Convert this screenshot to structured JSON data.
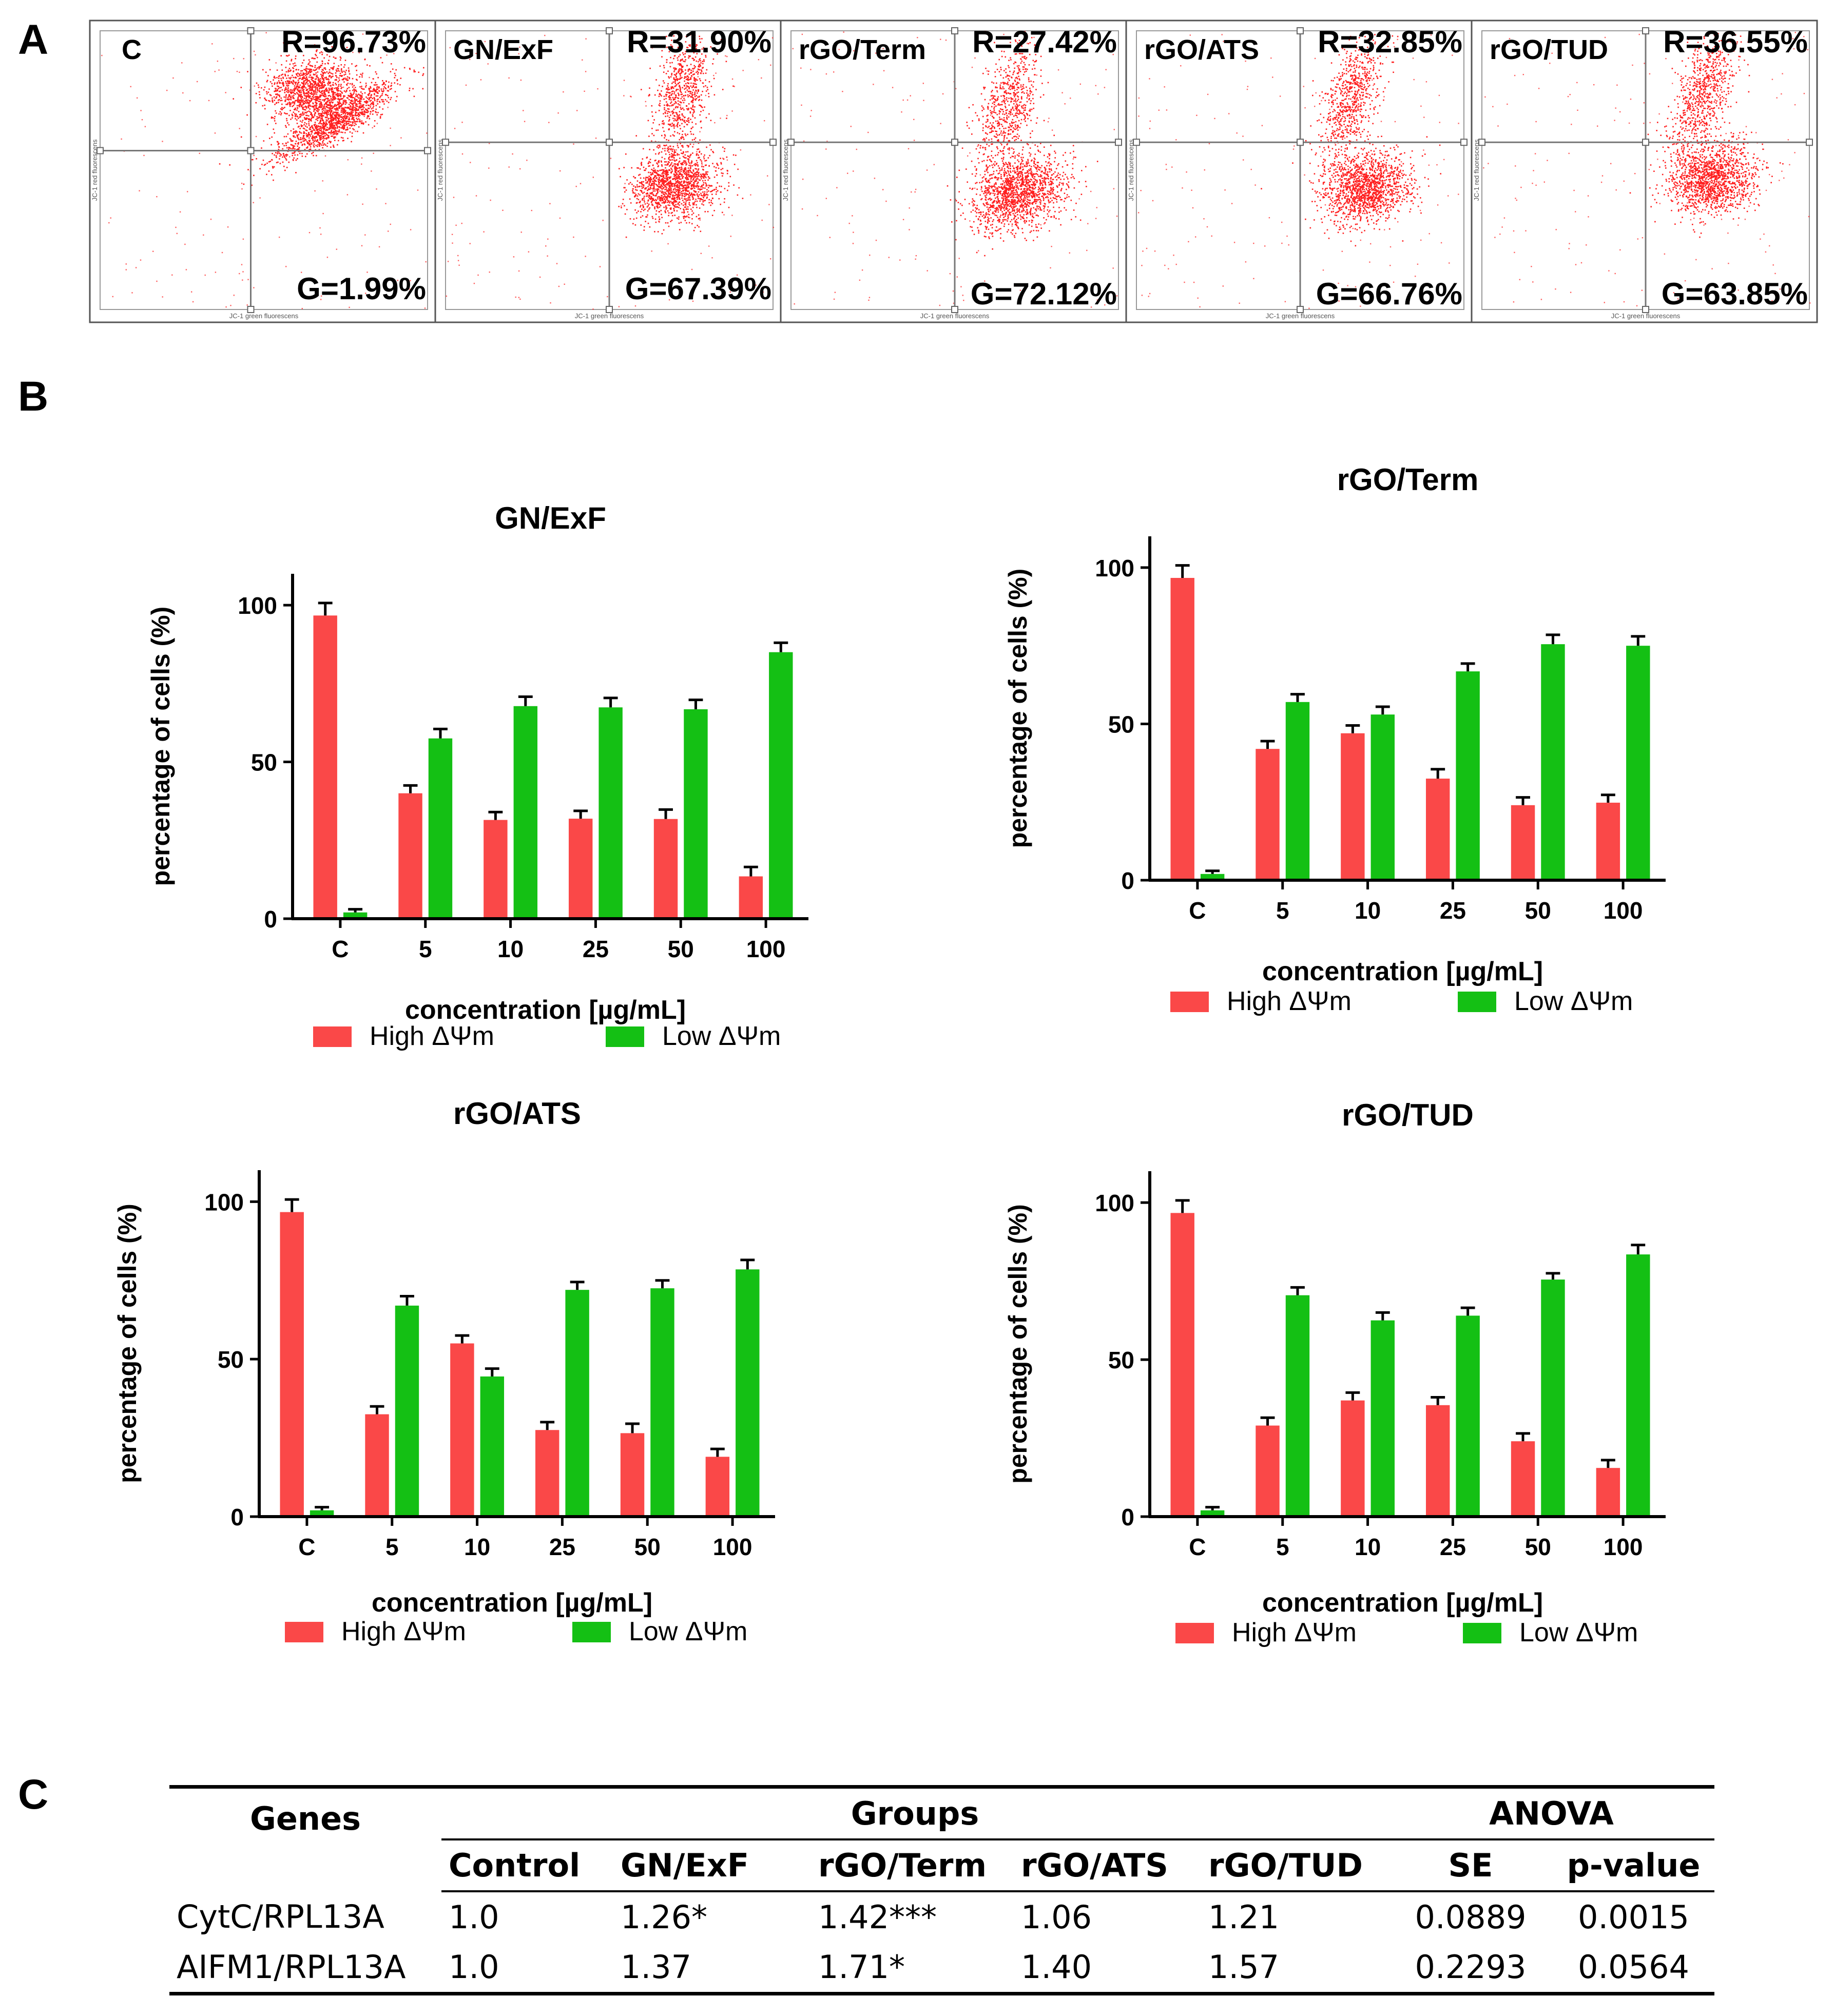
{
  "panel_labels": {
    "a": "A",
    "b": "B",
    "c": "C"
  },
  "colors": {
    "high": "#fa4848",
    "low": "#14c014",
    "dots": "#ff1f1f"
  },
  "flow": [
    {
      "label": "C",
      "R": "R=96.73%",
      "G": "G=1.99%"
    },
    {
      "label": "GN/ExF",
      "R": "R=31.90%",
      "G": "G=67.39%"
    },
    {
      "label": "rGO/Term",
      "R": "R=27.42%",
      "G": "G=72.12%"
    },
    {
      "label": "rGO/ATS",
      "R": "R=32.85%",
      "G": "G=66.76%"
    },
    {
      "label": "rGO/TUD",
      "R": "R=36.55%",
      "G": "G=63.85%"
    }
  ],
  "flow_axis": {
    "x": "JC-1 green fluorescens",
    "y": "JC-1 red fluorescens"
  },
  "chart_data": [
    {
      "type": "bar",
      "title": "GN/ExF",
      "categories": [
        "C",
        "5",
        "10",
        "25",
        "50",
        "100"
      ],
      "series": [
        {
          "name": "High ΔΨm",
          "values": [
            96.7,
            40,
            31.5,
            31.9,
            31.8,
            13.5
          ],
          "err": [
            4,
            2.5,
            2.5,
            2.5,
            3,
            3
          ]
        },
        {
          "name": "Low ΔΨm",
          "values": [
            2,
            57.5,
            67.8,
            67.4,
            66.8,
            85
          ],
          "err": [
            1,
            3,
            3,
            3,
            3,
            3
          ]
        }
      ],
      "xlabel": "concentration [µg/mL]",
      "ylabel": "percentage of cells (%)",
      "ylim": [
        0,
        110
      ],
      "yticks": [
        0,
        50,
        100
      ],
      "legend": "bottom"
    },
    {
      "type": "bar",
      "title": "rGO/Term",
      "categories": [
        "C",
        "5",
        "10",
        "25",
        "50",
        "100"
      ],
      "series": [
        {
          "name": "High ΔΨm",
          "values": [
            96.7,
            42,
            47,
            32.5,
            24,
            24.8
          ],
          "err": [
            4,
            2.5,
            2.5,
            3,
            2.5,
            2.5
          ]
        },
        {
          "name": "Low ΔΨm",
          "values": [
            2,
            57,
            53,
            66.8,
            75.5,
            75
          ],
          "err": [
            1,
            2.5,
            2.5,
            2.5,
            3,
            3
          ]
        }
      ],
      "xlabel": "concentration [µg/mL]",
      "ylabel": "percentage of cells (%)",
      "ylim": [
        0,
        110
      ],
      "yticks": [
        0,
        50,
        100
      ],
      "legend": "bottom"
    },
    {
      "type": "bar",
      "title": "rGO/ATS",
      "categories": [
        "C",
        "5",
        "10",
        "25",
        "50",
        "100"
      ],
      "series": [
        {
          "name": "High ΔΨm",
          "values": [
            96.7,
            32.5,
            55,
            27.5,
            26.5,
            19
          ],
          "err": [
            4,
            2.5,
            2.5,
            2.5,
            3,
            2.5
          ]
        },
        {
          "name": "Low ΔΨm",
          "values": [
            2,
            67,
            44.5,
            72,
            72.5,
            78.5
          ],
          "err": [
            1,
            3,
            2.5,
            2.5,
            2.5,
            3
          ]
        }
      ],
      "xlabel": "concentration [µg/mL]",
      "ylabel": "percentage of cells (%)",
      "ylim": [
        0,
        110
      ],
      "yticks": [
        0,
        50,
        100
      ],
      "legend": "bottom"
    },
    {
      "type": "bar",
      "title": "rGO/TUD",
      "categories": [
        "C",
        "5",
        "10",
        "25",
        "50",
        "100"
      ],
      "series": [
        {
          "name": "High ΔΨm",
          "values": [
            96.7,
            29,
            37,
            35.5,
            24,
            15.5
          ],
          "err": [
            4,
            2.5,
            2.5,
            2.5,
            2.5,
            2.5
          ]
        },
        {
          "name": "Low ΔΨm",
          "values": [
            2,
            70.5,
            62.5,
            64,
            75.5,
            83.5
          ],
          "err": [
            1,
            2.5,
            2.5,
            2.5,
            2,
            3
          ]
        }
      ],
      "xlabel": "concentration [µg/mL]",
      "ylabel": "percentage of cells (%)",
      "ylim": [
        0,
        110
      ],
      "yticks": [
        0,
        50,
        100
      ],
      "legend": "bottom"
    }
  ],
  "table": {
    "genes_header": "Genes",
    "groups_header": "Groups",
    "anova_header": "ANOVA",
    "columns": [
      "Control",
      "GN/ExF",
      "rGO/Term",
      "rGO/ATS",
      "rGO/TUD",
      "SE",
      "p-value"
    ],
    "rows": [
      {
        "gene": "CytC/RPL13A",
        "values": [
          "1.0",
          "1.26*",
          "1.42***",
          "1.06",
          "1.21",
          "0.0889",
          "0.0015"
        ]
      },
      {
        "gene": "AIFM1/RPL13A",
        "values": [
          "1.0",
          "1.37",
          "1.71*",
          "1.40",
          "1.57",
          "0.2293",
          "0.0564"
        ]
      }
    ]
  }
}
